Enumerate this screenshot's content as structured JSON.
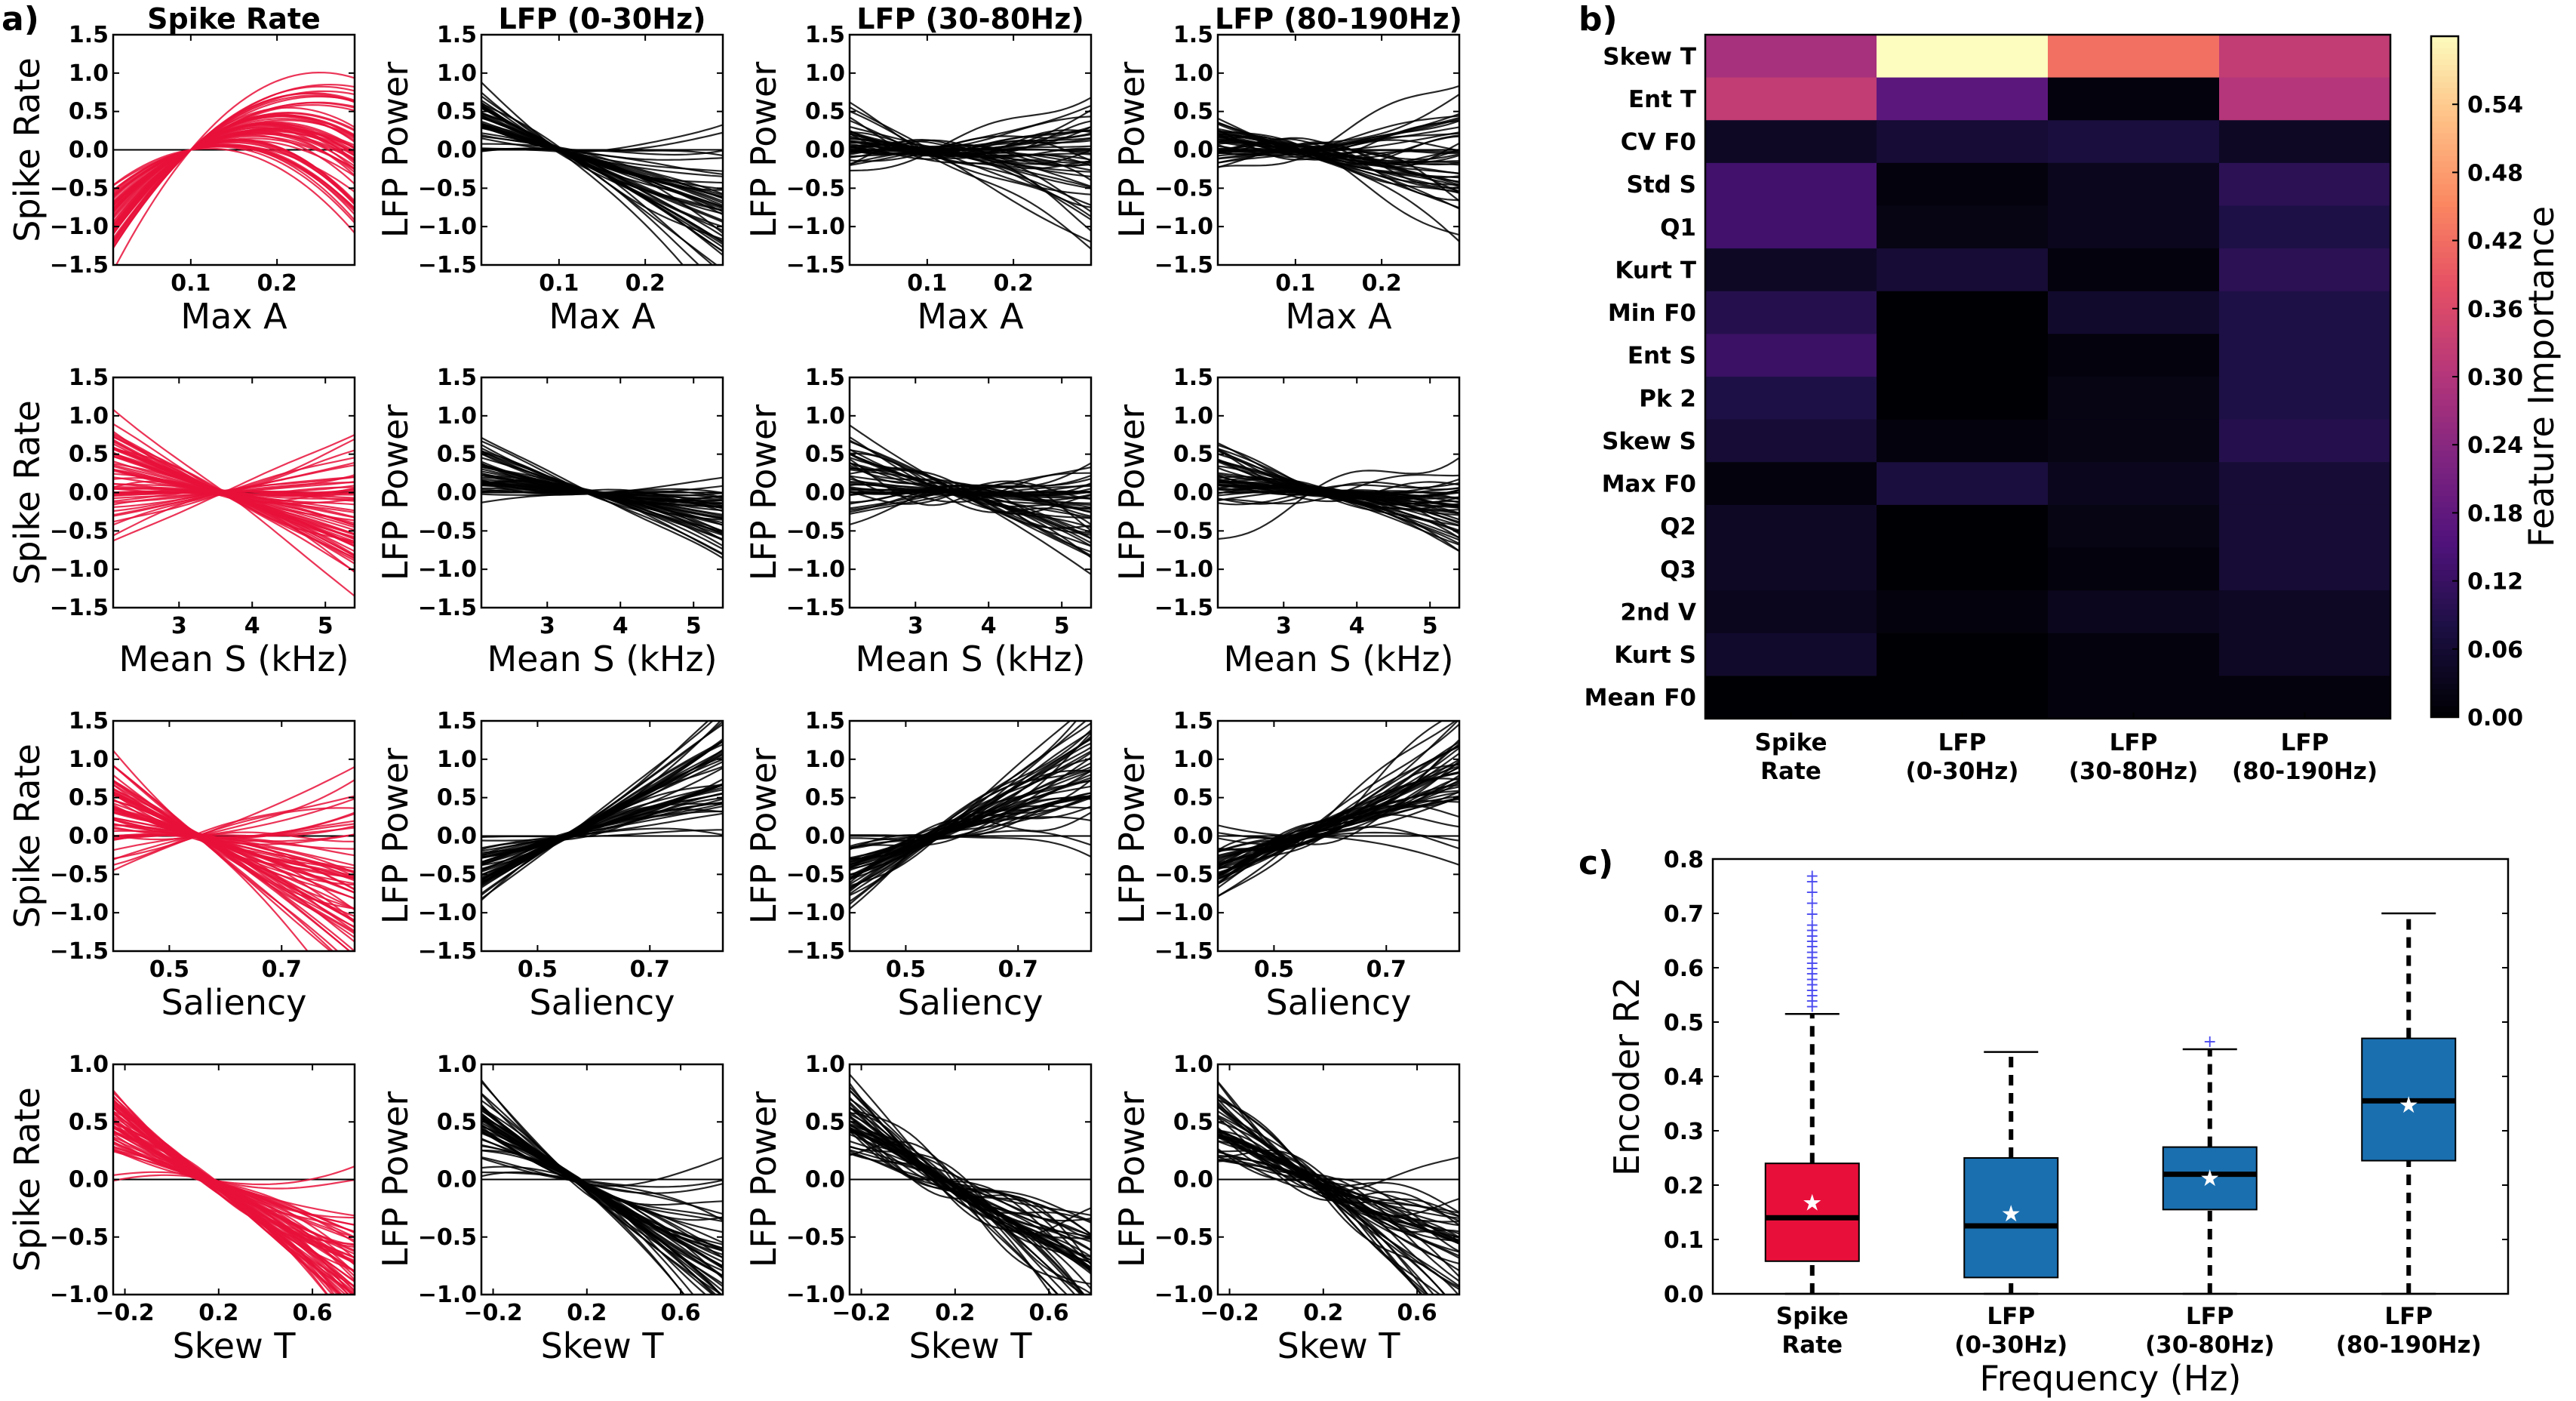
{
  "panel_letters": {
    "a": "a)",
    "b": "b)",
    "c": "c)"
  },
  "chart_data": [
    {
      "panel": "a",
      "type": "line",
      "description_rows": "4x4 grid of tuning-curve line plots",
      "column_titles": [
        "Spike Rate",
        "LFP (0-30Hz)",
        "LFP (30-80Hz)",
        "LFP (80-190Hz)"
      ],
      "ylabels": [
        "Spike Rate",
        "LFP Power",
        "LFP Power",
        "LFP Power"
      ],
      "column_colors": [
        "#e8103a",
        "#000000",
        "#000000",
        "#000000"
      ],
      "rows": [
        {
          "xlabel": "Max A",
          "xlim": [
            0.01,
            0.29
          ],
          "xticks": [
            0.1,
            0.2
          ],
          "xtick_labels": [
            "0.1",
            "0.2"
          ],
          "ylim": [
            -1.5,
            1.5
          ],
          "yticks": [
            -1.5,
            -1.0,
            -0.5,
            0.0,
            0.5,
            1.0,
            1.5
          ],
          "ytick_labels": [
            "−1.5",
            "−1.0",
            "−0.5",
            "0.0",
            "0.5",
            "1.0",
            "1.5"
          ],
          "crossing_x": 0.1
        },
        {
          "xlabel": "Mean S (kHz)",
          "xlim": [
            2.1,
            5.4
          ],
          "xticks": [
            3,
            4,
            5
          ],
          "xtick_labels": [
            "3",
            "4",
            "5"
          ],
          "ylim": [
            -1.5,
            1.5
          ],
          "yticks": [
            -1.5,
            -1.0,
            -0.5,
            0.0,
            0.5,
            1.0,
            1.5
          ],
          "ytick_labels": [
            "−1.5",
            "−1.0",
            "−0.5",
            "0.0",
            "0.5",
            "1.0",
            "1.5"
          ],
          "crossing_x": 3.6
        },
        {
          "xlabel": "Saliency",
          "xlim": [
            0.4,
            0.83
          ],
          "xticks": [
            0.5,
            0.7
          ],
          "xtick_labels": [
            "0.5",
            "0.7"
          ],
          "ylim": [
            -1.5,
            1.5
          ],
          "yticks": [
            -1.5,
            -1.0,
            -0.5,
            0.0,
            0.5,
            1.0,
            1.5
          ],
          "ytick_labels": [
            "−1.5",
            "−1.0",
            "−0.5",
            "0.0",
            "0.5",
            "1.0",
            "1.5"
          ],
          "crossing_x": 0.55
        },
        {
          "xlabel": "Skew T",
          "xlim": [
            -0.25,
            0.78
          ],
          "xticks": [
            -0.2,
            0.2,
            0.6
          ],
          "xtick_labels": [
            "−0.2",
            "0.2",
            "0.6"
          ],
          "ylim": [
            -1.0,
            1.0
          ],
          "yticks": [
            -1.0,
            -0.5,
            0.0,
            0.5,
            1.0
          ],
          "ytick_labels": [
            "−1.0",
            "−0.5",
            "0.0",
            "0.5",
            "1.0"
          ],
          "crossing_x": 0.15
        }
      ]
    },
    {
      "panel": "b",
      "type": "heatmap",
      "row_labels": [
        "Skew T",
        "Ent T",
        "CV F0",
        "Std S",
        "Q1",
        "Kurt T",
        "Min F0",
        "Ent S",
        "Pk 2",
        "Skew S",
        "Max F0",
        "Q2",
        "Q3",
        "2nd V",
        "Kurt S",
        "Mean F0"
      ],
      "column_labels": [
        [
          "Spike",
          "Rate"
        ],
        [
          "LFP",
          "(0-30Hz)"
        ],
        [
          "LFP",
          "(30-80Hz)"
        ],
        [
          "LFP",
          "(80-190Hz)"
        ]
      ],
      "values": [
        [
          0.28,
          0.6,
          0.42,
          0.32
        ],
        [
          0.32,
          0.17,
          0.01,
          0.3
        ],
        [
          0.04,
          0.06,
          0.07,
          0.04
        ],
        [
          0.13,
          0.01,
          0.03,
          0.1
        ],
        [
          0.13,
          0.02,
          0.03,
          0.08
        ],
        [
          0.04,
          0.06,
          0.01,
          0.1
        ],
        [
          0.09,
          0.0,
          0.05,
          0.08
        ],
        [
          0.12,
          0.0,
          0.01,
          0.08
        ],
        [
          0.08,
          0.0,
          0.02,
          0.08
        ],
        [
          0.06,
          0.01,
          0.02,
          0.09
        ],
        [
          0.01,
          0.07,
          0.03,
          0.06
        ],
        [
          0.04,
          0.0,
          0.02,
          0.06
        ],
        [
          0.04,
          0.0,
          0.01,
          0.06
        ],
        [
          0.03,
          0.01,
          0.03,
          0.04
        ],
        [
          0.05,
          0.0,
          0.01,
          0.04
        ],
        [
          0.0,
          0.0,
          0.01,
          0.01
        ]
      ],
      "colorbar": {
        "label": "Feature Importance",
        "range": [
          0.0,
          0.6
        ],
        "ticks": [
          0.0,
          0.06,
          0.12,
          0.18,
          0.24,
          0.3,
          0.36,
          0.42,
          0.48,
          0.54
        ],
        "tick_labels": [
          "0.00",
          "0.06",
          "0.12",
          "0.18",
          "0.24",
          "0.30",
          "0.36",
          "0.42",
          "0.48",
          "0.54"
        ],
        "colormap": "magma"
      }
    },
    {
      "panel": "c",
      "type": "box",
      "xlabel": "Frequency (Hz)",
      "ylabel": "Encoder R2",
      "ylim": [
        0.0,
        0.8
      ],
      "yticks": [
        0.0,
        0.1,
        0.2,
        0.3,
        0.4,
        0.5,
        0.6,
        0.7,
        0.8
      ],
      "ytick_labels": [
        "0.0",
        "0.1",
        "0.2",
        "0.3",
        "0.4",
        "0.5",
        "0.6",
        "0.7",
        "0.8"
      ],
      "categories": [
        [
          "Spike",
          "Rate"
        ],
        [
          "LFP",
          "(0-30Hz)"
        ],
        [
          "LFP",
          "(30-80Hz)"
        ],
        [
          "LFP",
          "(80-190Hz)"
        ]
      ],
      "boxes": [
        {
          "q1": 0.06,
          "median": 0.14,
          "q3": 0.24,
          "whisker_low": 0.0,
          "whisker_high": 0.515,
          "mean": 0.17,
          "color": "#e8103a",
          "outliers": [
            0.53,
            0.54,
            0.55,
            0.56,
            0.57,
            0.58,
            0.59,
            0.6,
            0.61,
            0.62,
            0.63,
            0.64,
            0.65,
            0.66,
            0.67,
            0.68,
            0.7,
            0.72,
            0.74,
            0.76,
            0.77
          ]
        },
        {
          "q1": 0.03,
          "median": 0.125,
          "q3": 0.25,
          "whisker_low": 0.0,
          "whisker_high": 0.445,
          "mean": 0.15,
          "color": "#1a6faf",
          "outliers": []
        },
        {
          "q1": 0.155,
          "median": 0.22,
          "q3": 0.27,
          "whisker_low": 0.0,
          "whisker_high": 0.45,
          "mean": 0.215,
          "color": "#1a6faf",
          "outliers": [
            0.465
          ]
        },
        {
          "q1": 0.245,
          "median": 0.355,
          "q3": 0.47,
          "whisker_low": 0.0,
          "whisker_high": 0.7,
          "mean": 0.35,
          "color": "#1a6faf",
          "outliers": []
        }
      ]
    }
  ]
}
